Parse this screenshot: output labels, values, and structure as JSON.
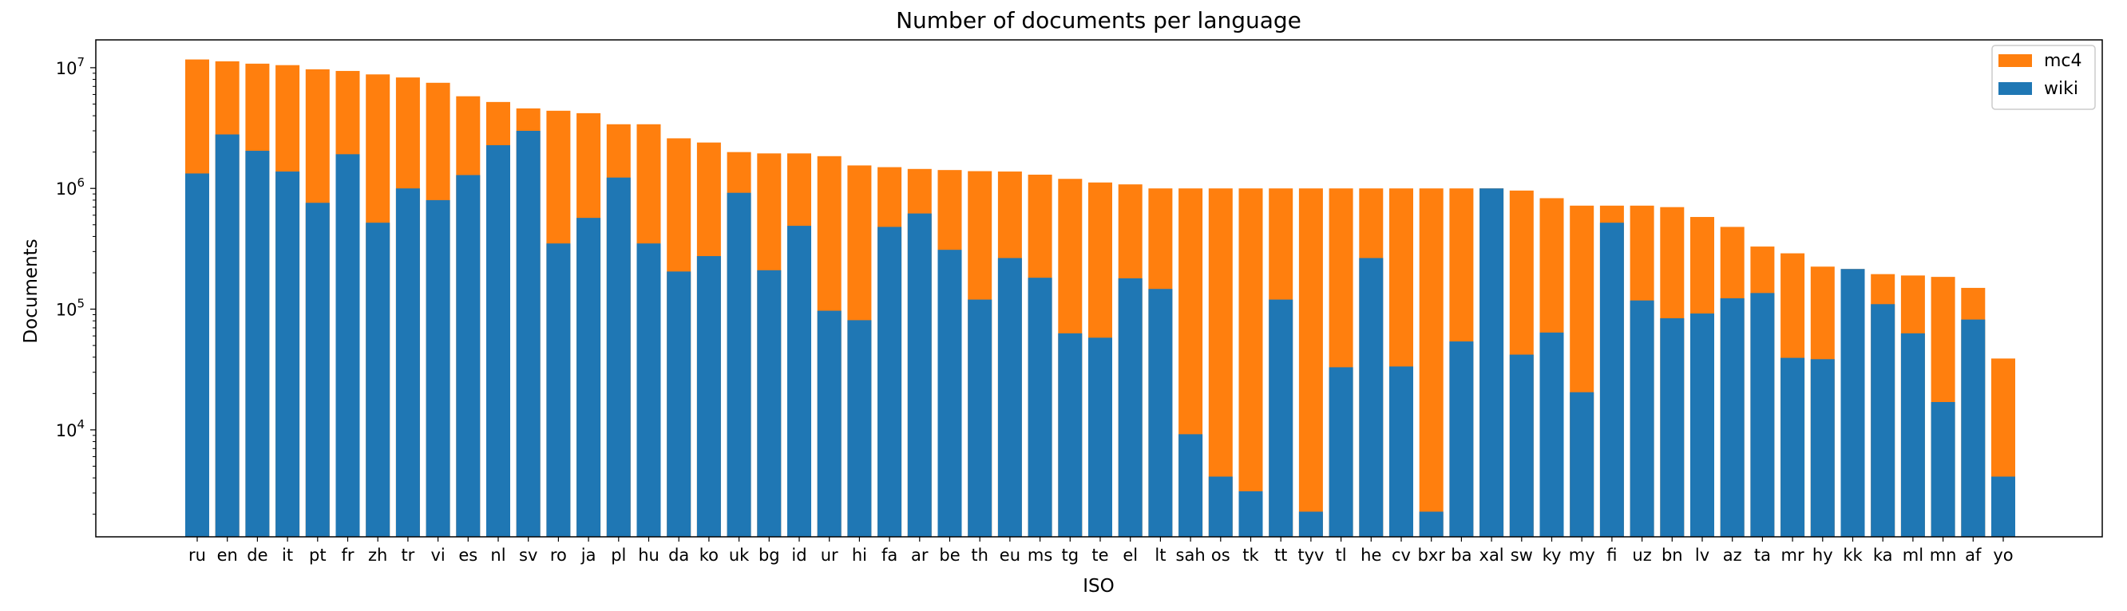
{
  "chart_data": {
    "type": "bar",
    "stacked": true,
    "title": "Number of documents per language",
    "xlabel": "ISO",
    "ylabel": "Documents",
    "yscale": "log",
    "ylim": [
      1300,
      17000000
    ],
    "yticks": [
      {
        "value": 10000,
        "base": "10",
        "exp": "4"
      },
      {
        "value": 100000,
        "base": "10",
        "exp": "5"
      },
      {
        "value": 1000000,
        "base": "10",
        "exp": "6"
      },
      {
        "value": 10000000,
        "base": "10",
        "exp": "7"
      }
    ],
    "legend": {
      "position": "top-right"
    },
    "categories": [
      "ru",
      "en",
      "de",
      "it",
      "pt",
      "fr",
      "zh",
      "tr",
      "vi",
      "es",
      "nl",
      "sv",
      "ro",
      "ja",
      "pl",
      "hu",
      "da",
      "ko",
      "uk",
      "bg",
      "id",
      "ur",
      "hi",
      "fa",
      "ar",
      "be",
      "th",
      "eu",
      "ms",
      "tg",
      "te",
      "el",
      "lt",
      "sah",
      "os",
      "tk",
      "tt",
      "tyv",
      "tl",
      "he",
      "cv",
      "bxr",
      "ba",
      "xal",
      "sw",
      "ky",
      "my",
      "fi",
      "uz",
      "bn",
      "lv",
      "az",
      "ta",
      "mr",
      "hy",
      "kk",
      "ka",
      "ml",
      "mn",
      "af",
      "yo"
    ],
    "series": [
      {
        "name": "mc4",
        "color": "#ff7f0e",
        "values": [
          11700000,
          11300000,
          10800000,
          10500000,
          9700000,
          9400000,
          8800000,
          8300000,
          7500000,
          5800000,
          5200000,
          4600000,
          4400000,
          4200000,
          3400000,
          3400000,
          2600000,
          2400000,
          2000000,
          1950000,
          1950000,
          1850000,
          1550000,
          1500000,
          1450000,
          1420000,
          1390000,
          1380000,
          1300000,
          1200000,
          1120000,
          1080000,
          1000000,
          1000000,
          1000000,
          1000000,
          1000000,
          1000000,
          1000000,
          1000000,
          1000000,
          1000000,
          1000000,
          1000000,
          960000,
          830000,
          720000,
          720000,
          720000,
          700000,
          580000,
          480000,
          330000,
          290000,
          225000,
          215000,
          195000,
          190000,
          185000,
          150000,
          39000
        ]
      },
      {
        "name": "wiki",
        "color": "#1f77b4",
        "values": [
          1330000,
          2800000,
          2050000,
          1380000,
          760000,
          1920000,
          520000,
          1000000,
          800000,
          1290000,
          2280000,
          3000000,
          350000,
          570000,
          1230000,
          350000,
          205000,
          275000,
          920000,
          210000,
          490000,
          97000,
          81000,
          480000,
          620000,
          310000,
          120000,
          265000,
          182000,
          63000,
          58000,
          180000,
          147000,
          9200,
          4100,
          3100,
          120000,
          2100,
          33000,
          265000,
          33500,
          2100,
          54000,
          1000000,
          42000,
          64000,
          20500,
          520000,
          118000,
          84000,
          92000,
          123000,
          136000,
          39500,
          38500,
          215000,
          110000,
          63000,
          17000,
          82000,
          4100
        ]
      }
    ]
  }
}
